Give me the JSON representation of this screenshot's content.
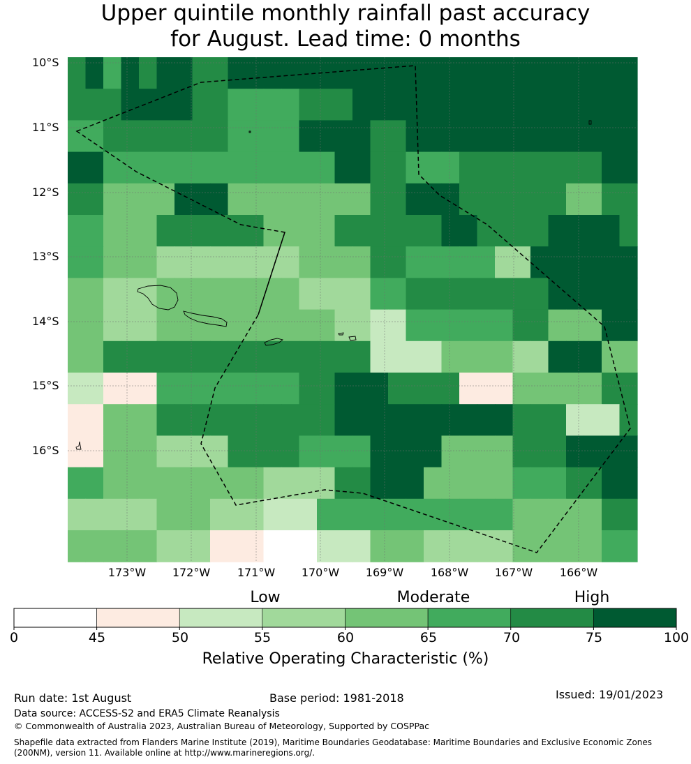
{
  "title": {
    "line1": "Upper quintile monthly rainfall past accuracy",
    "line2": "for August. Lead time: 0 months"
  },
  "map": {
    "lat_labels": [
      "10°S",
      "11°S",
      "12°S",
      "13°S",
      "14°S",
      "15°S",
      "16°S"
    ],
    "lon_labels": [
      "173°W",
      "172°W",
      "171°W",
      "170°W",
      "169°W",
      "168°W",
      "167°W",
      "166°W"
    ],
    "grid_bins": [
      [
        6,
        7,
        5,
        7,
        6,
        7,
        7,
        6,
        6,
        7,
        7,
        7,
        7,
        7,
        7,
        7,
        7,
        7,
        7,
        7,
        7,
        7,
        7,
        7,
        7,
        7,
        7,
        7,
        7,
        7,
        7,
        7
      ],
      [
        6,
        6,
        6,
        7,
        7,
        7,
        7,
        6,
        6,
        5,
        5,
        5,
        5,
        6,
        6,
        6,
        7,
        7,
        7,
        7,
        7,
        7,
        7,
        7,
        7,
        7,
        7,
        7,
        7,
        7,
        7,
        7
      ],
      [
        5,
        5,
        6,
        6,
        6,
        6,
        6,
        6,
        6,
        5,
        5,
        5,
        5,
        7,
        7,
        7,
        7,
        6,
        6,
        7,
        7,
        7,
        7,
        7,
        7,
        7,
        7,
        7,
        7,
        7,
        7,
        7
      ],
      [
        7,
        7,
        5,
        5,
        5,
        5,
        5,
        5,
        5,
        5,
        5,
        5,
        5,
        5,
        5,
        7,
        7,
        6,
        6,
        5,
        5,
        5,
        6,
        6,
        6,
        6,
        6,
        6,
        6,
        6,
        7,
        7
      ],
      [
        6,
        6,
        4,
        4,
        4,
        4,
        7,
        7,
        7,
        4,
        4,
        4,
        4,
        4,
        4,
        4,
        4,
        6,
        6,
        7,
        7,
        7,
        6,
        6,
        6,
        6,
        6,
        6,
        4,
        4,
        6,
        6
      ],
      [
        5,
        5,
        4,
        4,
        4,
        6,
        6,
        6,
        6,
        6,
        6,
        4,
        4,
        4,
        4,
        6,
        6,
        6,
        6,
        6,
        6,
        7,
        7,
        6,
        6,
        6,
        6,
        7,
        7,
        7,
        7,
        6
      ],
      [
        5,
        5,
        4,
        4,
        4,
        3,
        3,
        3,
        3,
        3,
        3,
        3,
        3,
        4,
        4,
        4,
        4,
        6,
        6,
        5,
        5,
        5,
        5,
        5,
        3,
        3,
        7,
        7,
        7,
        7,
        7,
        7
      ],
      [
        4,
        4,
        3,
        3,
        3,
        4,
        4,
        4,
        4,
        4,
        4,
        4,
        4,
        3,
        3,
        3,
        3,
        5,
        5,
        6,
        6,
        6,
        6,
        6,
        6,
        6,
        6,
        7,
        7,
        7,
        7,
        7
      ],
      [
        4,
        4,
        3,
        3,
        3,
        4,
        4,
        4,
        4,
        4,
        4,
        4,
        4,
        4,
        4,
        3,
        3,
        2,
        2,
        5,
        5,
        5,
        5,
        5,
        5,
        6,
        6,
        4,
        4,
        4,
        7,
        7
      ],
      [
        4,
        4,
        6,
        6,
        6,
        6,
        6,
        6,
        6,
        6,
        6,
        6,
        6,
        6,
        6,
        6,
        6,
        2,
        2,
        2,
        2,
        4,
        4,
        4,
        4,
        3,
        3,
        7,
        7,
        7,
        4,
        4
      ],
      [
        2,
        2,
        1,
        1,
        1,
        5,
        5,
        5,
        5,
        5,
        5,
        5,
        5,
        6,
        6,
        7,
        7,
        7,
        6,
        6,
        6,
        6,
        1,
        1,
        1,
        4,
        4,
        4,
        4,
        4,
        6,
        6
      ],
      [
        1,
        1,
        4,
        4,
        4,
        6,
        6,
        6,
        6,
        6,
        6,
        6,
        6,
        6,
        6,
        7,
        7,
        7,
        7,
        7,
        7,
        7,
        7,
        7,
        7,
        6,
        6,
        6,
        2,
        2,
        2,
        6
      ],
      [
        1,
        1,
        4,
        4,
        4,
        3,
        3,
        3,
        3,
        6,
        6,
        6,
        6,
        5,
        5,
        5,
        5,
        7,
        7,
        7,
        7,
        4,
        4,
        4,
        4,
        6,
        6,
        6,
        7,
        7,
        7,
        7
      ],
      [
        5,
        5,
        4,
        4,
        4,
        4,
        4,
        4,
        4,
        4,
        4,
        3,
        3,
        3,
        3,
        6,
        6,
        7,
        7,
        7,
        4,
        4,
        4,
        4,
        4,
        5,
        5,
        5,
        6,
        6,
        7,
        7
      ],
      [
        3,
        3,
        3,
        3,
        3,
        4,
        4,
        4,
        3,
        3,
        3,
        2,
        2,
        2,
        5,
        5,
        5,
        5,
        5,
        5,
        5,
        5,
        5,
        5,
        5,
        4,
        4,
        4,
        4,
        4,
        6,
        6
      ],
      [
        4,
        4,
        4,
        4,
        4,
        3,
        3,
        3,
        1,
        1,
        1,
        0,
        0,
        0,
        2,
        2,
        2,
        4,
        4,
        4,
        3,
        3,
        3,
        3,
        3,
        4,
        4,
        4,
        4,
        4,
        5,
        5
      ]
    ],
    "colors": {
      "bins": [
        "#ffffff",
        "#fdebe1",
        "#c7e9c0",
        "#a1d99b",
        "#74c476",
        "#41ab5d",
        "#238b45",
        "#005a32"
      ],
      "grid": "#6f6f6f",
      "boundary": "#000000"
    }
  },
  "colorbar": {
    "level_labels": [
      "Low",
      "Moderate",
      "High"
    ],
    "ticks": [
      "0",
      "45",
      "50",
      "55",
      "60",
      "65",
      "70",
      "75",
      "100"
    ],
    "label": "Relative Operating Characteristic (%)"
  },
  "footer": {
    "run_date": "Run date: 1st August",
    "base_period": "Base period: 1981-2018",
    "issued": "Issued: 19/01/2023",
    "data_source": "Data source: ACCESS-S2 and ERA5 Climate Reanalysis",
    "copyright": "© Commonwealth of Australia 2023, Australian Bureau of Meteorology, Supported by COSPPac",
    "shapefile_line1": "Shapefile data extracted from Flanders Marine Institute (2019), Maritime Boundaries Geodatabase: Maritime Boundaries and Exclusive Economic Zones",
    "shapefile_line2": "(200NM), version 11. Available online at http://www.marineregions.org/."
  }
}
